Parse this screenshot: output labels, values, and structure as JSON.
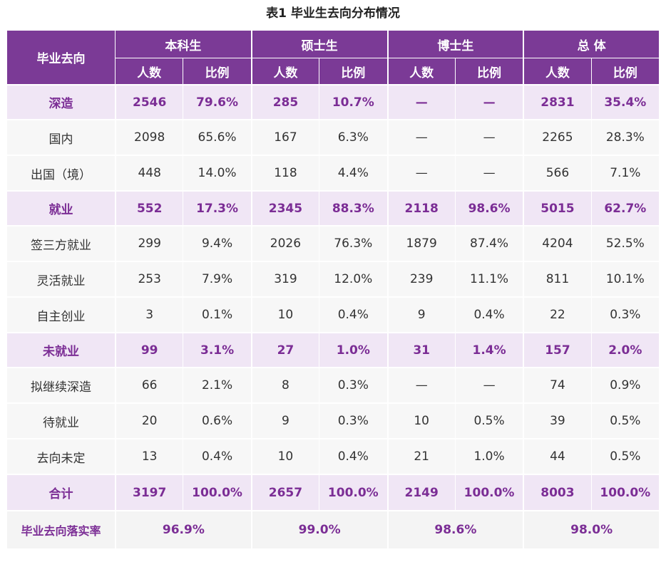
{
  "title": "表1  毕业生去向分布情况",
  "header": {
    "row_label": "毕业去向",
    "groups": [
      "本科生",
      "硕士生",
      "博士生",
      "总  体"
    ],
    "sub": {
      "count": "人数",
      "ratio": "比例"
    }
  },
  "rows": [
    {
      "label": "深造",
      "type": "cat",
      "values": [
        "2546",
        "79.6%",
        "285",
        "10.7%",
        "—",
        "—",
        "2831",
        "35.4%"
      ]
    },
    {
      "label": "国内",
      "type": "sub",
      "values": [
        "2098",
        "65.6%",
        "167",
        "6.3%",
        "—",
        "—",
        "2265",
        "28.3%"
      ]
    },
    {
      "label": "出国（境）",
      "type": "sub",
      "values": [
        "448",
        "14.0%",
        "118",
        "4.4%",
        "—",
        "—",
        "566",
        "7.1%"
      ]
    },
    {
      "label": "就业",
      "type": "cat",
      "values": [
        "552",
        "17.3%",
        "2345",
        "88.3%",
        "2118",
        "98.6%",
        "5015",
        "62.7%"
      ]
    },
    {
      "label": "签三方就业",
      "type": "sub",
      "values": [
        "299",
        "9.4%",
        "2026",
        "76.3%",
        "1879",
        "87.4%",
        "4204",
        "52.5%"
      ]
    },
    {
      "label": "灵活就业",
      "type": "sub",
      "values": [
        "253",
        "7.9%",
        "319",
        "12.0%",
        "239",
        "11.1%",
        "811",
        "10.1%"
      ]
    },
    {
      "label": "自主创业",
      "type": "sub",
      "values": [
        "3",
        "0.1%",
        "10",
        "0.4%",
        "9",
        "0.4%",
        "22",
        "0.3%"
      ]
    },
    {
      "label": "未就业",
      "type": "cat",
      "values": [
        "99",
        "3.1%",
        "27",
        "1.0%",
        "31",
        "1.4%",
        "157",
        "2.0%"
      ]
    },
    {
      "label": "拟继续深造",
      "type": "sub",
      "values": [
        "66",
        "2.1%",
        "8",
        "0.3%",
        "—",
        "—",
        "74",
        "0.9%"
      ]
    },
    {
      "label": "待就业",
      "type": "sub",
      "values": [
        "20",
        "0.6%",
        "9",
        "0.3%",
        "10",
        "0.5%",
        "39",
        "0.5%"
      ]
    },
    {
      "label": "去向未定",
      "type": "sub",
      "values": [
        "13",
        "0.4%",
        "10",
        "0.4%",
        "21",
        "1.0%",
        "44",
        "0.5%"
      ]
    },
    {
      "label": "合计",
      "type": "total",
      "values": [
        "3197",
        "100.0%",
        "2657",
        "100.0%",
        "2149",
        "100.0%",
        "8003",
        "100.0%"
      ]
    }
  ],
  "rate_row": {
    "label": "毕业去向落实率",
    "values": [
      "96.9%",
      "99.0%",
      "98.6%",
      "98.0%"
    ]
  },
  "colors": {
    "header_bg": "#7b3a96",
    "category_bg": "#f0e6f5",
    "category_text": "#7b2d95",
    "sub_bg": "#f7f7f7"
  }
}
